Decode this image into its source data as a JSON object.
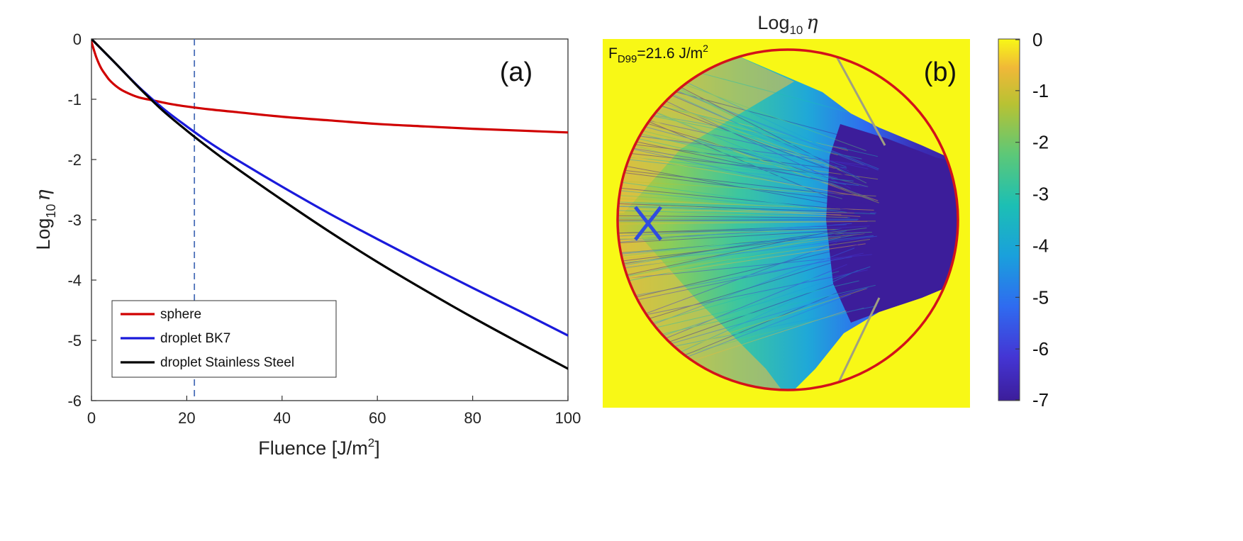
{
  "chart_data": [
    {
      "type": "line",
      "panel_label": "(a)",
      "xlabel_main": "Fluence [J/m",
      "xlabel_sup": "2",
      "xlabel_end": "]",
      "ylabel_main": "Log",
      "ylabel_sub": "10",
      "ylabel_symbol": "η",
      "xlim": [
        0,
        100
      ],
      "ylim": [
        -6,
        0
      ],
      "xticks": [
        "0",
        "20",
        "40",
        "60",
        "80",
        "100"
      ],
      "yticks": [
        "0",
        "-1",
        "-2",
        "-3",
        "-4",
        "-5",
        "-6"
      ],
      "grid": false,
      "legend_position": "bottom-left",
      "reference_line_x": 21.6,
      "series": [
        {
          "name": "sphere",
          "color": "#d00000",
          "x": [
            0,
            1,
            2,
            3,
            4,
            6,
            8,
            10,
            13,
            16,
            20,
            25,
            30,
            40,
            50,
            60,
            70,
            80,
            90,
            100
          ],
          "y": [
            -0.05,
            -0.3,
            -0.48,
            -0.6,
            -0.7,
            -0.83,
            -0.91,
            -0.97,
            -1.02,
            -1.07,
            -1.12,
            -1.17,
            -1.21,
            -1.29,
            -1.35,
            -1.41,
            -1.45,
            -1.49,
            -1.52,
            -1.55
          ]
        },
        {
          "name": "droplet BK7",
          "color": "#1a1adb",
          "x": [
            0,
            5,
            10,
            15,
            20,
            25,
            30,
            40,
            50,
            60,
            70,
            80,
            90,
            100
          ],
          "y": [
            0,
            -0.4,
            -0.8,
            -1.15,
            -1.45,
            -1.73,
            -1.98,
            -2.45,
            -2.9,
            -3.32,
            -3.73,
            -4.13,
            -4.52,
            -4.92
          ]
        },
        {
          "name": "droplet Stainless Steel",
          "color": "#000000",
          "x": [
            0,
            5,
            10,
            15,
            20,
            25,
            30,
            40,
            50,
            60,
            70,
            80,
            90,
            100
          ],
          "y": [
            0,
            -0.4,
            -0.81,
            -1.19,
            -1.52,
            -1.83,
            -2.12,
            -2.67,
            -3.2,
            -3.7,
            -4.17,
            -4.62,
            -5.05,
            -5.47
          ]
        }
      ]
    },
    {
      "type": "heatmap",
      "panel_label": "(b)",
      "title_main": "Log",
      "title_sub": "10",
      "title_symbol": "η",
      "annotation_main": "F",
      "annotation_sub": "D99",
      "annotation_value": "=21.6 J/m",
      "annotation_sup": "2",
      "colorbar_range": [
        -7,
        0
      ],
      "colorbar_ticks": [
        "0",
        "-1",
        "-2",
        "-3",
        "-4",
        "-5",
        "-6",
        "-7"
      ],
      "boundary_color": "#d3121a",
      "colormap": [
        "#3c1d9a",
        "#4435d4",
        "#2f6bf0",
        "#1aa0dc",
        "#1cbfb4",
        "#5cc878",
        "#b8c233",
        "#f0b838",
        "#f8f816"
      ]
    }
  ]
}
